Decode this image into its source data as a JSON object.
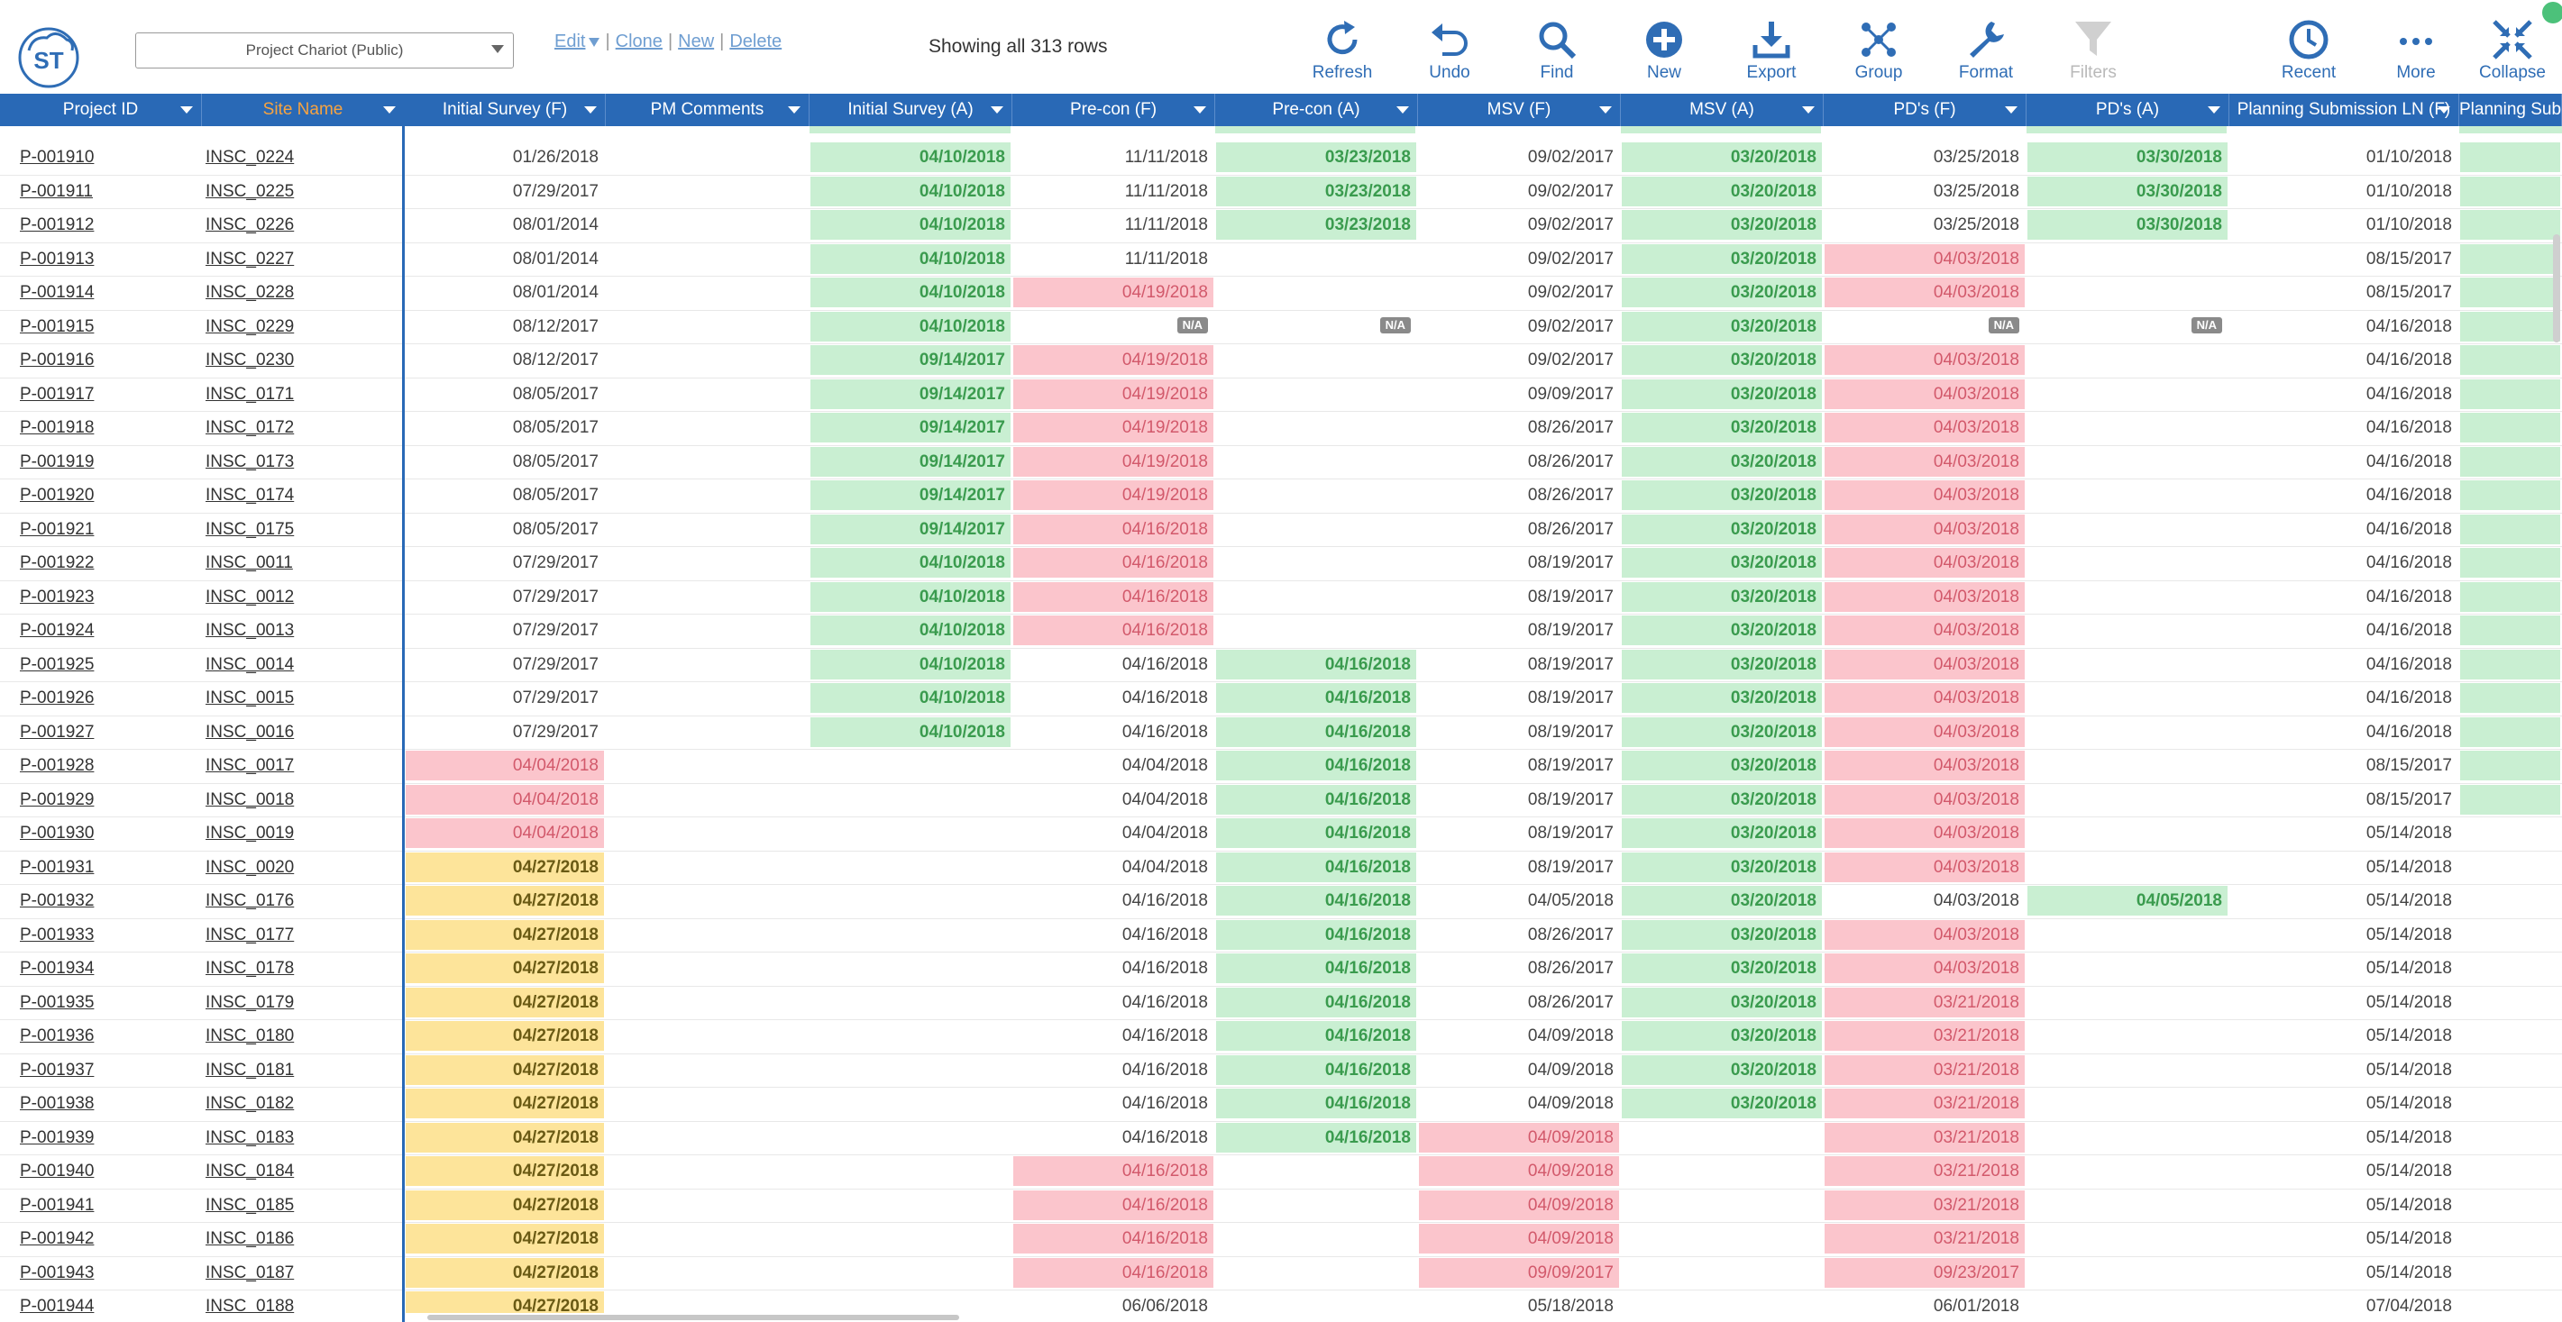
{
  "toolbar": {
    "logo_text": "ST",
    "view_select": "Project Chariot (Public)",
    "edit_label": "Edit",
    "clone_label": "Clone",
    "new_link_label": "New",
    "delete_label": "Delete",
    "row_count": "Showing all 313 rows",
    "tools": [
      {
        "label": "Refresh",
        "icon": "refresh-icon"
      },
      {
        "label": "Undo",
        "icon": "undo-icon"
      },
      {
        "label": "Find",
        "icon": "search-icon"
      },
      {
        "label": "New",
        "icon": "plus-circle-icon"
      },
      {
        "label": "Export",
        "icon": "download-icon"
      },
      {
        "label": "Group",
        "icon": "group-icon"
      },
      {
        "label": "Format",
        "icon": "wrench-icon"
      },
      {
        "label": "Filters",
        "icon": "filter-icon"
      },
      {
        "label": "Recent",
        "icon": "clock-icon"
      },
      {
        "label": "More",
        "icon": "more-icon"
      },
      {
        "label": "Collapse",
        "icon": "collapse-icon"
      }
    ]
  },
  "columns": [
    {
      "label": "Project ID"
    },
    {
      "label": "Site Name"
    },
    {
      "label": "Initial Survey (F)"
    },
    {
      "label": "PM Comments"
    },
    {
      "label": "Initial Survey (A)"
    },
    {
      "label": "Pre-con (F)"
    },
    {
      "label": "Pre-con (A)"
    },
    {
      "label": "MSV (F)"
    },
    {
      "label": "MSV (A)"
    },
    {
      "label": "PD's (F)"
    },
    {
      "label": "PD's (A)"
    },
    {
      "label": "Planning Submission LN (F)"
    },
    {
      "label": "Planning Sub"
    }
  ],
  "na_label": "N/A",
  "colors": {
    "green": "#c9efd2",
    "red": "#fbc5cc",
    "yellow": "#fde49a",
    "header": "#2969b6"
  },
  "rows": [
    {
      "id": "P-001910",
      "site": "INSC_0224",
      "c": [
        "01/26/2018",
        "",
        "04/10/2018 g",
        "11/11/2018",
        "03/23/2018 g",
        "09/02/2017",
        "03/20/2018 g",
        "03/25/2018",
        "03/30/2018 g",
        "01/10/2018",
        " g"
      ]
    },
    {
      "id": "P-001911",
      "site": "INSC_0225",
      "c": [
        "07/29/2017",
        "",
        "04/10/2018 g",
        "11/11/2018",
        "03/23/2018 g",
        "09/02/2017",
        "03/20/2018 g",
        "03/25/2018",
        "03/30/2018 g",
        "01/10/2018",
        " g"
      ]
    },
    {
      "id": "P-001912",
      "site": "INSC_0226",
      "c": [
        "08/01/2014",
        "",
        "04/10/2018 g",
        "11/11/2018",
        "03/23/2018 g",
        "09/02/2017",
        "03/20/2018 g",
        "03/25/2018",
        "03/30/2018 g",
        "01/10/2018",
        " g"
      ]
    },
    {
      "id": "P-001913",
      "site": "INSC_0227",
      "c": [
        "08/01/2014",
        "",
        "04/10/2018 g",
        "11/11/2018",
        "",
        "09/02/2017",
        "03/20/2018 g",
        "04/03/2018 r",
        "",
        "08/15/2017",
        " g"
      ]
    },
    {
      "id": "P-001914",
      "site": "INSC_0228",
      "c": [
        "08/01/2014",
        "",
        "04/10/2018 g",
        "04/19/2018 r",
        "",
        "09/02/2017",
        "03/20/2018 g",
        "04/03/2018 r",
        "",
        "08/15/2017",
        " g"
      ]
    },
    {
      "id": "P-001915",
      "site": "INSC_0229",
      "c": [
        "08/12/2017",
        "",
        "04/10/2018 g",
        "NA",
        "NA",
        "09/02/2017",
        "03/20/2018 g",
        "NA",
        "NA",
        "04/16/2018",
        " g"
      ]
    },
    {
      "id": "P-001916",
      "site": "INSC_0230",
      "c": [
        "08/12/2017",
        "",
        "09/14/2017 g",
        "04/19/2018 r",
        "",
        "09/02/2017",
        "03/20/2018 g",
        "04/03/2018 r",
        "",
        "04/16/2018",
        " g"
      ]
    },
    {
      "id": "P-001917",
      "site": "INSC_0171",
      "c": [
        "08/05/2017",
        "",
        "09/14/2017 g",
        "04/19/2018 r",
        "",
        "09/09/2017",
        "03/20/2018 g",
        "04/03/2018 r",
        "",
        "04/16/2018",
        " g"
      ]
    },
    {
      "id": "P-001918",
      "site": "INSC_0172",
      "c": [
        "08/05/2017",
        "",
        "09/14/2017 g",
        "04/19/2018 r",
        "",
        "08/26/2017",
        "03/20/2018 g",
        "04/03/2018 r",
        "",
        "04/16/2018",
        " g"
      ]
    },
    {
      "id": "P-001919",
      "site": "INSC_0173",
      "c": [
        "08/05/2017",
        "",
        "09/14/2017 g",
        "04/19/2018 r",
        "",
        "08/26/2017",
        "03/20/2018 g",
        "04/03/2018 r",
        "",
        "04/16/2018",
        " g"
      ]
    },
    {
      "id": "P-001920",
      "site": "INSC_0174",
      "c": [
        "08/05/2017",
        "",
        "09/14/2017 g",
        "04/19/2018 r",
        "",
        "08/26/2017",
        "03/20/2018 g",
        "04/03/2018 r",
        "",
        "04/16/2018",
        " g"
      ]
    },
    {
      "id": "P-001921",
      "site": "INSC_0175",
      "c": [
        "08/05/2017",
        "",
        "09/14/2017 g",
        "04/16/2018 r",
        "",
        "08/26/2017",
        "03/20/2018 g",
        "04/03/2018 r",
        "",
        "04/16/2018",
        " g"
      ]
    },
    {
      "id": "P-001922",
      "site": "INSC_0011",
      "c": [
        "07/29/2017",
        "",
        "04/10/2018 g",
        "04/16/2018 r",
        "",
        "08/19/2017",
        "03/20/2018 g",
        "04/03/2018 r",
        "",
        "04/16/2018",
        " g"
      ]
    },
    {
      "id": "P-001923",
      "site": "INSC_0012",
      "c": [
        "07/29/2017",
        "",
        "04/10/2018 g",
        "04/16/2018 r",
        "",
        "08/19/2017",
        "03/20/2018 g",
        "04/03/2018 r",
        "",
        "04/16/2018",
        " g"
      ]
    },
    {
      "id": "P-001924",
      "site": "INSC_0013",
      "c": [
        "07/29/2017",
        "",
        "04/10/2018 g",
        "04/16/2018 r",
        "",
        "08/19/2017",
        "03/20/2018 g",
        "04/03/2018 r",
        "",
        "04/16/2018",
        " g"
      ]
    },
    {
      "id": "P-001925",
      "site": "INSC_0014",
      "c": [
        "07/29/2017",
        "",
        "04/10/2018 g",
        "04/16/2018",
        "04/16/2018 g",
        "08/19/2017",
        "03/20/2018 g",
        "04/03/2018 r",
        "",
        "04/16/2018",
        " g"
      ]
    },
    {
      "id": "P-001926",
      "site": "INSC_0015",
      "c": [
        "07/29/2017",
        "",
        "04/10/2018 g",
        "04/16/2018",
        "04/16/2018 g",
        "08/19/2017",
        "03/20/2018 g",
        "04/03/2018 r",
        "",
        "04/16/2018",
        " g"
      ]
    },
    {
      "id": "P-001927",
      "site": "INSC_0016",
      "c": [
        "07/29/2017",
        "",
        "04/10/2018 g",
        "04/16/2018",
        "04/16/2018 g",
        "08/19/2017",
        "03/20/2018 g",
        "04/03/2018 r",
        "",
        "04/16/2018",
        " g"
      ]
    },
    {
      "id": "P-001928",
      "site": "INSC_0017",
      "c": [
        "04/04/2018 r",
        "",
        "",
        "04/04/2018",
        "04/16/2018 g",
        "08/19/2017",
        "03/20/2018 g",
        "04/03/2018 r",
        "",
        "08/15/2017",
        " g"
      ]
    },
    {
      "id": "P-001929",
      "site": "INSC_0018",
      "c": [
        "04/04/2018 r",
        "",
        "",
        "04/04/2018",
        "04/16/2018 g",
        "08/19/2017",
        "03/20/2018 g",
        "04/03/2018 r",
        "",
        "08/15/2017",
        " g"
      ]
    },
    {
      "id": "P-001930",
      "site": "INSC_0019",
      "c": [
        "04/04/2018 r",
        "",
        "",
        "04/04/2018",
        "04/16/2018 g",
        "08/19/2017",
        "03/20/2018 g",
        "04/03/2018 r",
        "",
        "05/14/2018",
        ""
      ]
    },
    {
      "id": "P-001931",
      "site": "INSC_0020",
      "c": [
        "04/27/2018 y",
        "",
        "",
        "04/04/2018",
        "04/16/2018 g",
        "08/19/2017",
        "03/20/2018 g",
        "04/03/2018 r",
        "",
        "05/14/2018",
        ""
      ]
    },
    {
      "id": "P-001932",
      "site": "INSC_0176",
      "c": [
        "04/27/2018 y",
        "",
        "",
        "04/16/2018",
        "04/16/2018 g",
        "04/05/2018",
        "03/20/2018 g",
        "04/03/2018",
        "04/05/2018 g",
        "05/14/2018",
        ""
      ]
    },
    {
      "id": "P-001933",
      "site": "INSC_0177",
      "c": [
        "04/27/2018 y",
        "",
        "",
        "04/16/2018",
        "04/16/2018 g",
        "08/26/2017",
        "03/20/2018 g",
        "04/03/2018 r",
        "",
        "05/14/2018",
        ""
      ]
    },
    {
      "id": "P-001934",
      "site": "INSC_0178",
      "c": [
        "04/27/2018 y",
        "",
        "",
        "04/16/2018",
        "04/16/2018 g",
        "08/26/2017",
        "03/20/2018 g",
        "04/03/2018 r",
        "",
        "05/14/2018",
        ""
      ]
    },
    {
      "id": "P-001935",
      "site": "INSC_0179",
      "c": [
        "04/27/2018 y",
        "",
        "",
        "04/16/2018",
        "04/16/2018 g",
        "08/26/2017",
        "03/20/2018 g",
        "03/21/2018 r",
        "",
        "05/14/2018",
        ""
      ]
    },
    {
      "id": "P-001936",
      "site": "INSC_0180",
      "c": [
        "04/27/2018 y",
        "",
        "",
        "04/16/2018",
        "04/16/2018 g",
        "04/09/2018",
        "03/20/2018 g",
        "03/21/2018 r",
        "",
        "05/14/2018",
        ""
      ]
    },
    {
      "id": "P-001937",
      "site": "INSC_0181",
      "c": [
        "04/27/2018 y",
        "",
        "",
        "04/16/2018",
        "04/16/2018 g",
        "04/09/2018",
        "03/20/2018 g",
        "03/21/2018 r",
        "",
        "05/14/2018",
        ""
      ]
    },
    {
      "id": "P-001938",
      "site": "INSC_0182",
      "c": [
        "04/27/2018 y",
        "",
        "",
        "04/16/2018",
        "04/16/2018 g",
        "04/09/2018",
        "03/20/2018 g",
        "03/21/2018 r",
        "",
        "05/14/2018",
        ""
      ]
    },
    {
      "id": "P-001939",
      "site": "INSC_0183",
      "c": [
        "04/27/2018 y",
        "",
        "",
        "04/16/2018",
        "04/16/2018 g",
        "04/09/2018 r",
        "",
        "03/21/2018 r",
        "",
        "05/14/2018",
        ""
      ]
    },
    {
      "id": "P-001940",
      "site": "INSC_0184",
      "c": [
        "04/27/2018 y",
        "",
        "",
        "04/16/2018 r",
        "",
        "04/09/2018 r",
        "",
        "03/21/2018 r",
        "",
        "05/14/2018",
        ""
      ]
    },
    {
      "id": "P-001941",
      "site": "INSC_0185",
      "c": [
        "04/27/2018 y",
        "",
        "",
        "04/16/2018 r",
        "",
        "04/09/2018 r",
        "",
        "03/21/2018 r",
        "",
        "05/14/2018",
        ""
      ]
    },
    {
      "id": "P-001942",
      "site": "INSC_0186",
      "c": [
        "04/27/2018 y",
        "",
        "",
        "04/16/2018 r",
        "",
        "04/09/2018 r",
        "",
        "03/21/2018 r",
        "",
        "05/14/2018",
        ""
      ]
    },
    {
      "id": "P-001943",
      "site": "INSC_0187",
      "c": [
        "04/27/2018 y",
        "",
        "",
        "04/16/2018 r",
        "",
        "09/09/2017 r",
        "",
        "09/23/2017 r",
        "",
        "05/14/2018",
        ""
      ]
    },
    {
      "id": "P-001944",
      "site": "INSC_0188",
      "c": [
        "04/27/2018 y",
        "",
        "",
        "06/06/2018",
        "",
        "05/18/2018",
        "",
        "06/01/2018",
        "",
        "07/04/2018",
        ""
      ]
    }
  ]
}
